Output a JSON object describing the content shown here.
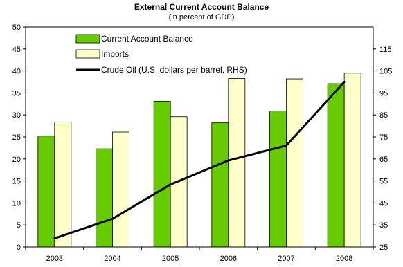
{
  "chart_data": {
    "type": "bar",
    "title": "External Current Account Balance",
    "subtitle": "(in percent of GDP)",
    "categories": [
      "2003",
      "2004",
      "2005",
      "2006",
      "2007",
      "2008"
    ],
    "series": [
      {
        "name": "Current Account Balance",
        "type": "bar",
        "axis": "left",
        "color": "#66cc00",
        "values": [
          25.2,
          22.3,
          33.1,
          28.2,
          30.9,
          37.1
        ]
      },
      {
        "name": "Imports",
        "type": "bar",
        "axis": "left",
        "color": "#ffffcc",
        "values": [
          28.4,
          26.1,
          29.6,
          38.3,
          38.2,
          39.5
        ]
      },
      {
        "name": "Crude Oil (U.S. dollars per barrel, RHS)",
        "type": "line",
        "axis": "right",
        "color": "#000000",
        "values": [
          28.9,
          37.8,
          53.4,
          64.3,
          71.1,
          100.0
        ]
      }
    ],
    "y_left": {
      "min": 0,
      "max": 50,
      "ticks": [
        0,
        5,
        10,
        15,
        20,
        25,
        30,
        35,
        40,
        45,
        50
      ]
    },
    "y_right": {
      "min": 25,
      "max": 125,
      "ticks": [
        25,
        35,
        45,
        55,
        65,
        75,
        85,
        95,
        105,
        115
      ]
    },
    "grid": false,
    "legend_position": "top-left"
  }
}
